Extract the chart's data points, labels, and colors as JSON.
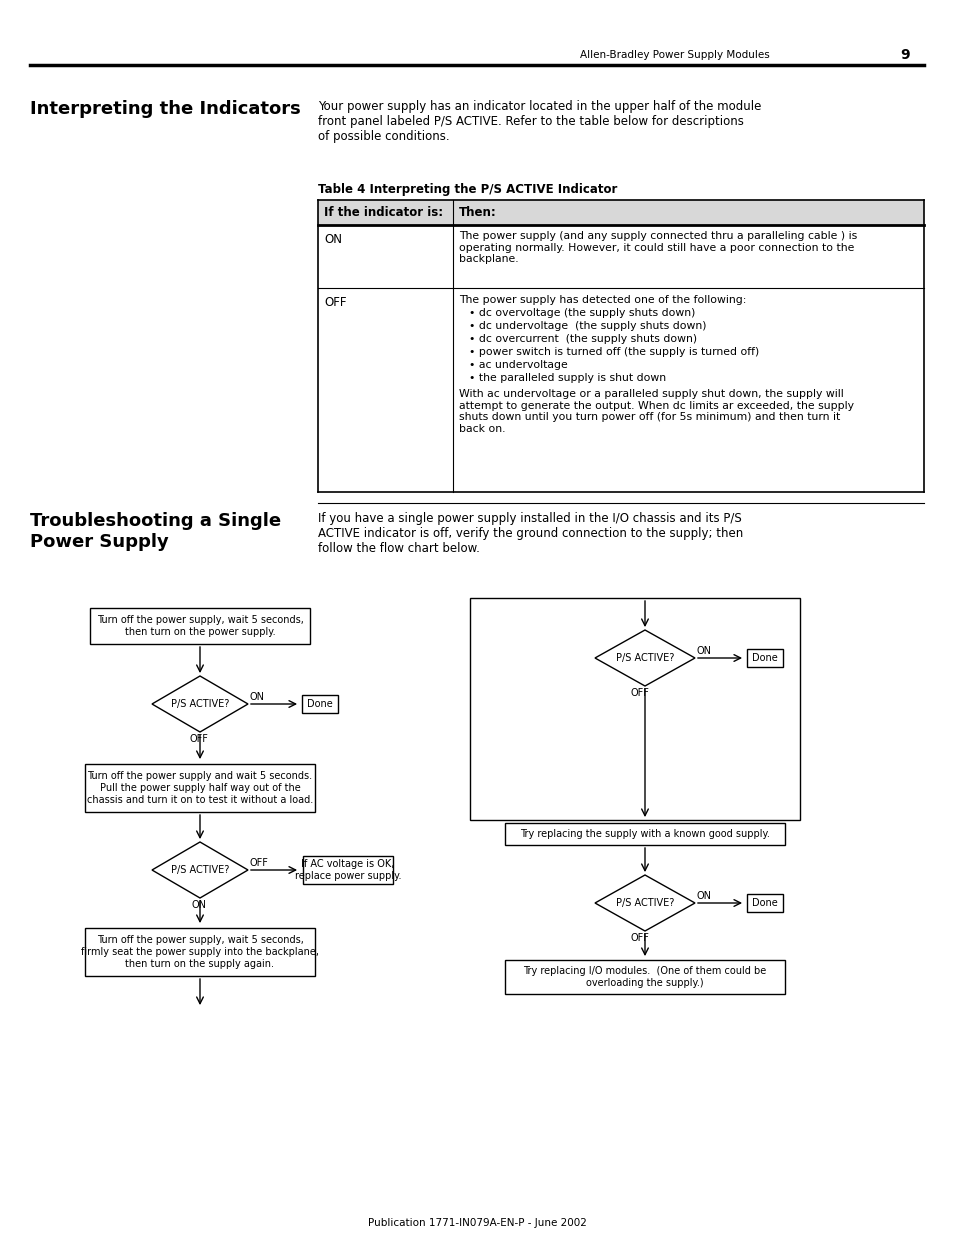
{
  "page_num": "9",
  "header_text": "Allen-Bradley Power Supply Modules",
  "footer_text": "Publication 1771-IN079A-EN-P - June 2002",
  "s1_title": "Interpreting the Indicators",
  "s1_body": "Your power supply has an indicator located in the upper half of the module\nfront panel labeled P/S ACTIVE. Refer to the table below for descriptions\nof possible conditions.",
  "tbl_title": "Table 4 Interpreting the P/S ACTIVE Indicator",
  "tbl_h1": "If the indicator is:",
  "tbl_h2": "Then:",
  "on_label": "ON",
  "on_desc": "The power supply (and any supply connected thru a paralleling cable ) is\noperating normally. However, it could still have a poor connection to the\nbackplane.",
  "off_label": "OFF",
  "off_intro": "The power supply has detected one of the following:",
  "off_bullets": [
    "dc overvoltage (the supply shuts down)",
    "dc undervoltage  (the supply shuts down)",
    "dc overcurrent  (the supply shuts down)",
    "power switch is turned off (the supply is turned off)",
    "ac undervoltage",
    "the paralleled supply is shut down"
  ],
  "off_footer": "With ac undervoltage or a paralleled supply shut down, the supply will\nattempt to generate the output. When dc limits ar exceeded, the supply\nshuts down until you turn power off (for 5s minimum) and then turn it\nback on.",
  "s2_title": "Troubleshooting a Single\nPower Supply",
  "s2_body": "If you have a single power supply installed in the I/O chassis and its P/S\nACTIVE indicator is off, verify the ground connection to the supply; then\nfollow the flow chart below.",
  "lc_box1": "Turn off the power supply, wait 5 seconds,\nthen turn on the power supply.",
  "lc_diamond1": "P/S ACTIVE?",
  "lc_box2": "Turn off the power supply and wait 5 seconds.\nPull the power supply half way out of the\nchassis and turn it on to test it without a load.",
  "lc_diamond2": "P/S ACTIVE?",
  "lc_box2b": "If AC voltage is OK,\nreplace power supply.",
  "lc_box3": "Turn off the power supply, wait 5 seconds,\nfirmly seat the power supply into the backplane,\nthen turn on the supply again.",
  "rc_diamond1": "P/S ACTIVE?",
  "rc_box1": "Try replacing the supply with a known good supply.",
  "rc_diamond2": "P/S ACTIVE?",
  "rc_box2": "Try replacing I/O modules.  (One of them could be\noverloading the supply.)",
  "bg": "#ffffff"
}
